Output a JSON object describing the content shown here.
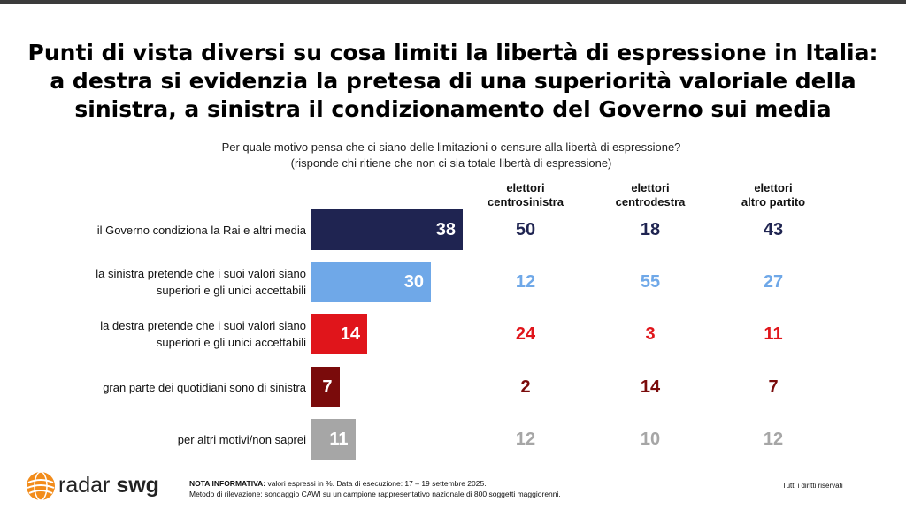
{
  "title": [
    "Punti di vista diversi su cosa limiti la libertà di espressione in Italia:",
    "a destra si evidenzia la pretesa di una superiorità valoriale della",
    "sinistra, a sinistra il condizionamento del Governo sui media"
  ],
  "question": [
    "Per quale motivo pensa che ci siano delle limitazioni o censure alla libertà di espressione?",
    "(risponde chi ritiene che non ci sia totale libertà di espressione)"
  ],
  "columns": [
    [
      "elettori",
      "centrosinistra"
    ],
    [
      "elettori",
      "centrodestra"
    ],
    [
      "elettori",
      "altro partito"
    ]
  ],
  "chart_data": {
    "type": "bar",
    "orientation": "horizontal",
    "categories": [
      [
        "il Governo condiziona la Rai e altri media"
      ],
      [
        "la sinistra pretende che i suoi valori siano",
        "superiori e gli unici accettabili"
      ],
      [
        "la destra pretende che i suoi valori siano",
        "superiori e gli unici accettabili"
      ],
      [
        "gran parte dei quotidiani sono di sinistra"
      ],
      [
        "per altri motivi/non saprei"
      ]
    ],
    "values": [
      38,
      30,
      14,
      7,
      11
    ],
    "colors": [
      "#1f2451",
      "#6fa8e8",
      "#e0151b",
      "#7a0b0b",
      "#a6a6a6"
    ],
    "breakdown": [
      {
        "values": [
          50,
          12,
          24,
          2,
          12
        ]
      },
      {
        "values": [
          18,
          55,
          3,
          14,
          10
        ]
      },
      {
        "values": [
          43,
          27,
          11,
          7,
          12
        ]
      }
    ],
    "text_colors": [
      "#1f2451",
      "#6fa8e8",
      "#e0151b",
      "#7a0b0b",
      "#a6a6a6"
    ]
  },
  "footer": {
    "note_label": "NOTA INFORMATIVA:",
    "note_text": " valori espressi in %. Data di esecuzione: 17 – 19 settembre 2025.",
    "method": "Metodo di rilevazione: sondaggio CAWI su un campione rappresentativo nazionale di 800 soggetti maggiorenni.",
    "rights": "Tutti i diritti riservati"
  },
  "logo": {
    "radar": "radar",
    "swg": "swg",
    "icon": "orange-globe-icon",
    "accent": "#f28c1b"
  }
}
